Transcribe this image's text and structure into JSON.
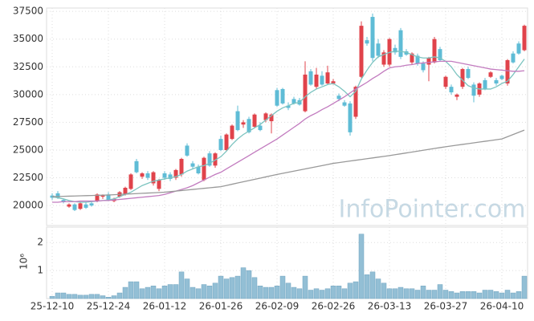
{
  "chart_data": [
    {
      "type": "candlestick",
      "watermark": "InfoPointer.com",
      "categories": [
        "25-12-10",
        null,
        null,
        null,
        null,
        null,
        null,
        null,
        null,
        null,
        "25-12-24",
        null,
        null,
        null,
        null,
        null,
        null,
        null,
        null,
        null,
        "26-01-12",
        null,
        null,
        null,
        null,
        null,
        null,
        null,
        null,
        null,
        "26-01-26",
        null,
        null,
        null,
        null,
        null,
        null,
        null,
        null,
        null,
        "26-02-09",
        null,
        null,
        null,
        null,
        null,
        null,
        null,
        null,
        null,
        "26-02-26",
        null,
        null,
        null,
        null,
        null,
        null,
        null,
        null,
        null,
        "26-03-13",
        null,
        null,
        null,
        null,
        null,
        null,
        null,
        null,
        null,
        "26-03-27",
        null,
        null,
        null,
        null,
        null,
        null,
        null,
        null,
        null,
        "26-04-10",
        null,
        null,
        null,
        null
      ],
      "ohlc": [
        [
          20900,
          21100,
          20500,
          20700
        ],
        [
          21100,
          21300,
          20600,
          20700
        ],
        [
          20500,
          20600,
          20200,
          20300
        ],
        [
          19900,
          20200,
          19800,
          20100
        ],
        [
          20100,
          20200,
          19500,
          19600
        ],
        [
          19700,
          20300,
          19600,
          20200
        ],
        [
          20100,
          20300,
          19700,
          19800
        ],
        [
          20200,
          20400,
          19900,
          20000
        ],
        [
          20400,
          21100,
          20300,
          21000
        ],
        [
          20800,
          21000,
          20600,
          20900
        ],
        [
          21000,
          21200,
          20400,
          20500
        ],
        [
          20400,
          20700,
          20300,
          20600
        ],
        [
          20800,
          21300,
          20700,
          21200
        ],
        [
          21000,
          21700,
          20900,
          21600
        ],
        [
          21500,
          22900,
          21400,
          22800
        ],
        [
          24000,
          24200,
          22900,
          23000
        ],
        [
          22600,
          23000,
          22400,
          22900
        ],
        [
          22900,
          23100,
          22300,
          22500
        ],
        [
          22000,
          23100,
          21800,
          23000
        ],
        [
          21500,
          22400,
          21300,
          22300
        ],
        [
          22900,
          23100,
          22300,
          22500
        ],
        [
          22800,
          23000,
          22200,
          22400
        ],
        [
          22500,
          23300,
          22300,
          23200
        ],
        [
          22800,
          24300,
          22600,
          24200
        ],
        [
          25400,
          25600,
          24400,
          24500
        ],
        [
          23800,
          24000,
          23300,
          23500
        ],
        [
          23500,
          23700,
          22800,
          22900
        ],
        [
          22300,
          24400,
          22200,
          24300
        ],
        [
          24700,
          24900,
          23500,
          23600
        ],
        [
          23600,
          24800,
          23400,
          24700
        ],
        [
          26000,
          26300,
          24900,
          25000
        ],
        [
          25000,
          26500,
          24900,
          26400
        ],
        [
          26000,
          27300,
          25900,
          27200
        ],
        [
          28500,
          29000,
          26700,
          26800
        ],
        [
          27300,
          27700,
          27000,
          27500
        ],
        [
          27800,
          28000,
          26500,
          26600
        ],
        [
          27100,
          28300,
          27000,
          28200
        ],
        [
          27200,
          27500,
          26700,
          26800
        ],
        [
          27700,
          28400,
          27500,
          28300
        ],
        [
          27600,
          28300,
          26500,
          28200
        ],
        [
          30400,
          30600,
          28900,
          29000
        ],
        [
          30500,
          30600,
          29100,
          29200
        ],
        [
          29000,
          29300,
          28600,
          28800
        ],
        [
          29600,
          29800,
          29100,
          29200
        ],
        [
          29500,
          29700,
          29000,
          29100
        ],
        [
          28500,
          33000,
          28400,
          31800
        ],
        [
          32100,
          32300,
          30800,
          30900
        ],
        [
          30700,
          32400,
          30500,
          31800
        ],
        [
          31700,
          32100,
          30800,
          30900
        ],
        [
          31000,
          32600,
          30900,
          32000
        ],
        [
          31000,
          31400,
          30900,
          31200
        ],
        [
          29900,
          30100,
          29400,
          29600
        ],
        [
          29300,
          29500,
          28900,
          29000
        ],
        [
          29200,
          29400,
          26300,
          26600
        ],
        [
          28000,
          30800,
          27800,
          30700
        ],
        [
          31600,
          36600,
          31500,
          36200
        ],
        [
          34900,
          35200,
          34400,
          34600
        ],
        [
          37000,
          37300,
          33000,
          33300
        ],
        [
          34600,
          35000,
          33300,
          33500
        ],
        [
          32700,
          34000,
          32500,
          33800
        ],
        [
          32700,
          35100,
          32500,
          35000
        ],
        [
          34200,
          34500,
          33600,
          33800
        ],
        [
          35800,
          36000,
          33200,
          33400
        ],
        [
          33900,
          34100,
          33500,
          33600
        ],
        [
          32900,
          33800,
          32700,
          33700
        ],
        [
          33500,
          33700,
          32600,
          32800
        ],
        [
          32800,
          33000,
          32000,
          32200
        ],
        [
          32700,
          33400,
          31200,
          33300
        ],
        [
          32900,
          35200,
          32800,
          35000
        ],
        [
          34100,
          34300,
          33000,
          33100
        ],
        [
          30700,
          31700,
          30500,
          31600
        ],
        [
          30700,
          30900,
          30000,
          30200
        ],
        [
          29800,
          30100,
          29500,
          30000
        ],
        [
          30700,
          32400,
          30500,
          32300
        ],
        [
          32300,
          32500,
          31400,
          31500
        ],
        [
          30900,
          31100,
          29300,
          29900
        ],
        [
          30000,
          31100,
          29800,
          31000
        ],
        [
          31300,
          31500,
          30400,
          30500
        ],
        [
          31600,
          32100,
          31500,
          32000
        ],
        [
          31300,
          31500,
          30800,
          31000
        ],
        [
          31700,
          31800,
          31300,
          31400
        ],
        [
          31000,
          33200,
          30800,
          33100
        ],
        [
          33700,
          33900,
          32800,
          32900
        ],
        [
          34600,
          34800,
          33600,
          33700
        ],
        [
          34000,
          36300,
          33900,
          36200
        ]
      ],
      "up_color": "#e0434b",
      "down_color": "#5fbcd6",
      "series": [
        {
          "color": "#7cc4c0",
          "values": [
            20800,
            20700,
            20600,
            20450,
            20350,
            20300,
            20300,
            20350,
            20400,
            20450,
            20500,
            20600,
            20800,
            21000,
            21200,
            21500,
            21800,
            22000,
            22200,
            22300,
            22400,
            22500,
            22600,
            22800,
            23100,
            23300,
            23500,
            23600,
            23800,
            24100,
            24400,
            24900,
            25500,
            26000,
            26400,
            26700,
            27000,
            27300,
            27700,
            28100,
            28500,
            28800,
            29000,
            29200,
            29300,
            29800,
            30200,
            30500,
            30700,
            30900,
            31000,
            30700,
            30300,
            29800,
            30300,
            31400,
            32200,
            32900,
            33400,
            33600,
            33800,
            33900,
            33900,
            33800,
            33600,
            33400,
            33300,
            33300,
            33400,
            33300,
            33000,
            32500,
            31800,
            31300,
            30800,
            30600,
            30500,
            30500,
            30500,
            30700,
            31000,
            31200,
            31800,
            32500,
            33200
          ]
        },
        {
          "color": "#c27bbf",
          "values": [
            20300,
            20300,
            20350,
            20350,
            20350,
            20400,
            20400,
            20400,
            20400,
            20450,
            20450,
            20500,
            20550,
            20600,
            20650,
            20700,
            20750,
            20800,
            20850,
            20900,
            21000,
            21150,
            21300,
            21450,
            21600,
            21800,
            22050,
            22300,
            22550,
            22800,
            23000,
            23300,
            23600,
            23900,
            24200,
            24500,
            24800,
            25100,
            25400,
            25700,
            26000,
            26350,
            26700,
            27050,
            27400,
            27800,
            28100,
            28350,
            28650,
            28900,
            29200,
            29500,
            29800,
            30150,
            30500,
            30800,
            31100,
            31450,
            31750,
            32100,
            32400,
            32500,
            32550,
            32650,
            32700,
            32800,
            32850,
            32900,
            32950,
            33000,
            33000,
            33000,
            32900,
            32800,
            32700,
            32600,
            32500,
            32400,
            32300,
            32250,
            32200,
            32150,
            32100,
            32100,
            32150
          ]
        },
        {
          "color": "#999999",
          "values": [
            20800,
            20815,
            20830,
            20845,
            20860,
            20875,
            20890,
            20905,
            20920,
            20935,
            20950,
            20975,
            21000,
            21025,
            21050,
            21075,
            21100,
            21125,
            21150,
            21175,
            21200,
            21250,
            21300,
            21350,
            21400,
            21450,
            21500,
            21550,
            21600,
            21650,
            21700,
            21810,
            21920,
            22030,
            22140,
            22250,
            22360,
            22470,
            22580,
            22690,
            22800,
            22900,
            23000,
            23100,
            23200,
            23300,
            23400,
            23500,
            23600,
            23700,
            23800,
            23870,
            23940,
            24010,
            24080,
            24150,
            24220,
            24290,
            24360,
            24430,
            24500,
            24580,
            24660,
            24740,
            24820,
            24900,
            24980,
            25060,
            25140,
            25220,
            25300,
            25370,
            25440,
            25510,
            25580,
            25650,
            25720,
            25790,
            25860,
            25930,
            26000,
            26200,
            26400,
            26600,
            26800
          ]
        }
      ],
      "ylim": [
        18200,
        37800
      ],
      "yticks": [
        20000,
        22500,
        25000,
        27500,
        30000,
        32500,
        35000,
        37500
      ],
      "grid": true
    },
    {
      "type": "bar",
      "y_label": "10⁶",
      "color": "#93bfd5",
      "values": [
        0.08,
        0.2,
        0.2,
        0.15,
        0.15,
        0.12,
        0.12,
        0.15,
        0.15,
        0.1,
        0.05,
        0.1,
        0.2,
        0.4,
        0.6,
        0.6,
        0.35,
        0.4,
        0.45,
        0.35,
        0.45,
        0.5,
        0.5,
        0.95,
        0.7,
        0.4,
        0.35,
        0.5,
        0.45,
        0.55,
        0.8,
        0.7,
        0.75,
        0.8,
        1.1,
        1.0,
        0.75,
        0.45,
        0.4,
        0.4,
        0.45,
        0.8,
        0.55,
        0.4,
        0.35,
        0.8,
        0.3,
        0.35,
        0.3,
        0.35,
        0.45,
        0.45,
        0.35,
        0.55,
        0.6,
        2.3,
        0.85,
        0.95,
        0.7,
        0.55,
        0.35,
        0.35,
        0.4,
        0.35,
        0.35,
        0.3,
        0.45,
        0.3,
        0.3,
        0.5,
        0.3,
        0.25,
        0.2,
        0.25,
        0.25,
        0.25,
        0.2,
        0.3,
        0.3,
        0.25,
        0.2,
        0.3,
        0.2,
        0.25,
        0.8
      ],
      "ylim": [
        0,
        2.55
      ],
      "yticks": [
        1,
        2
      ],
      "grid": true
    }
  ]
}
